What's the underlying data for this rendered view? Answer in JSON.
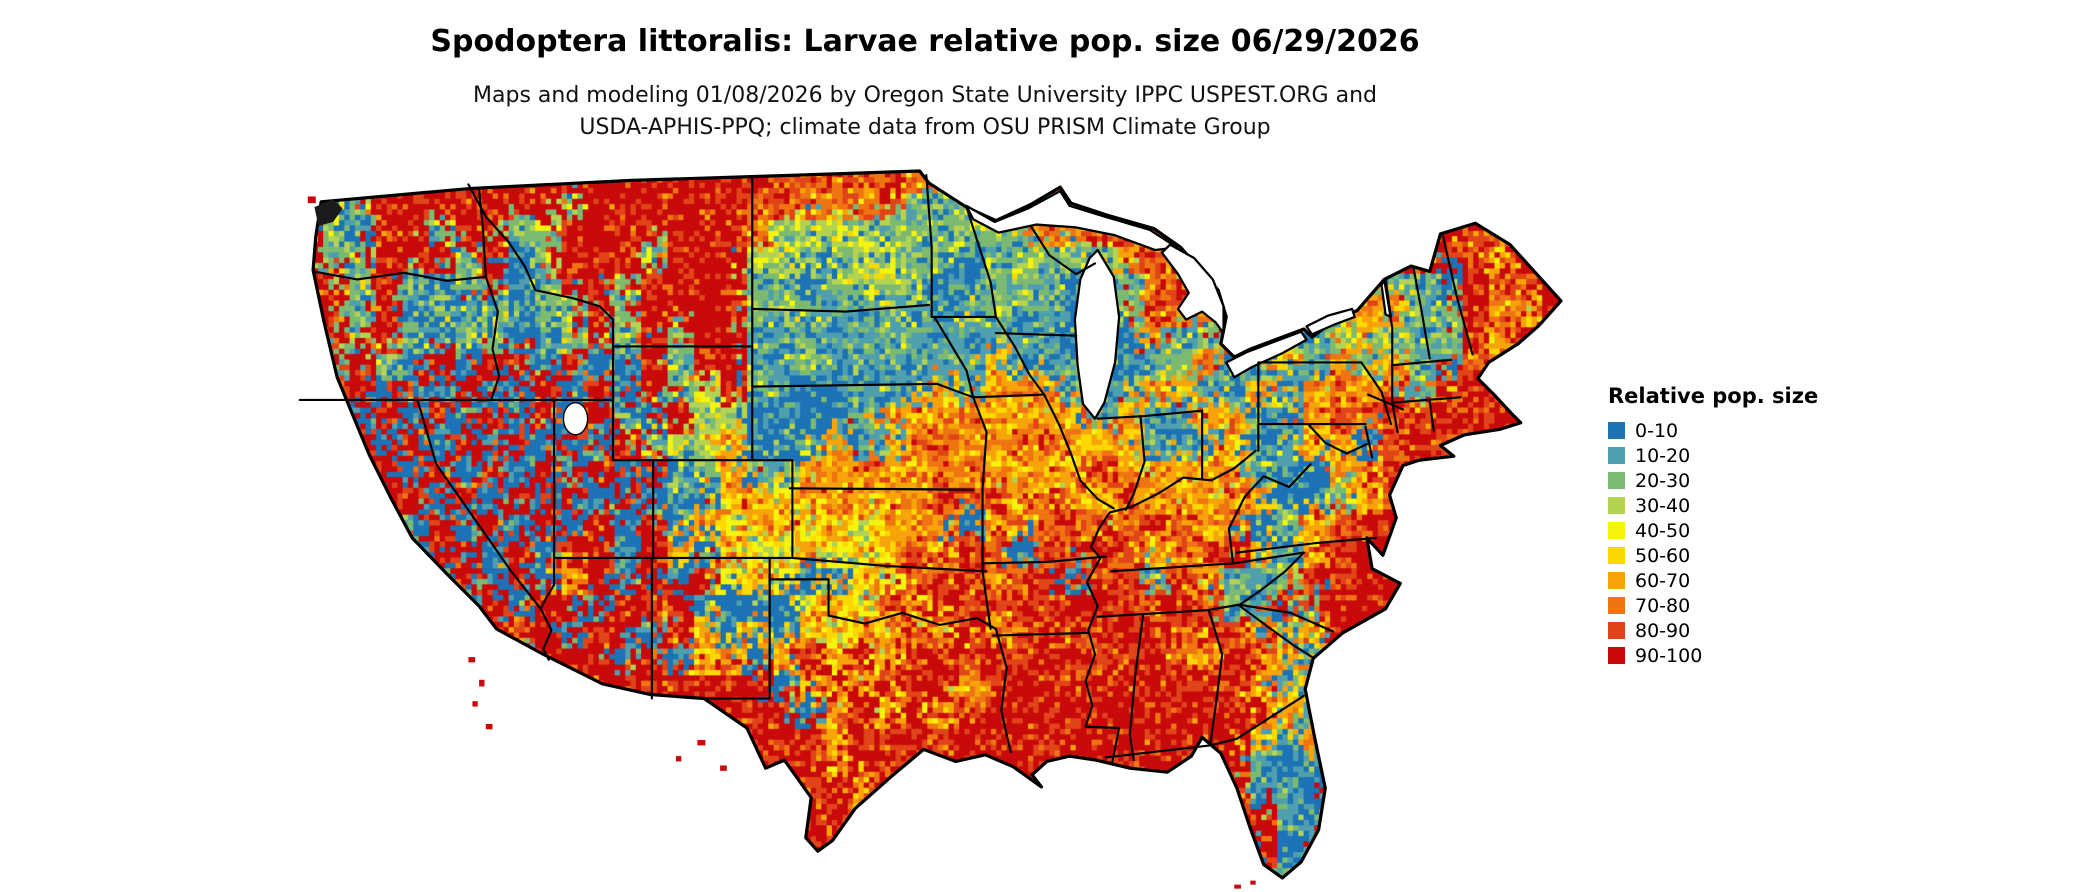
{
  "header": {
    "title": "Spodoptera littoralis: Larvae relative pop. size 06/29/2026",
    "subtitle_line1": "Maps and modeling 01/08/2026 by Oregon State University IPPC USPEST.ORG and",
    "subtitle_line2": "USDA-APHIS-PPQ; climate data from OSU PRISM Climate Group"
  },
  "legend": {
    "title": "Relative pop. size",
    "items": [
      {
        "label": "0-10",
        "color": "#1c73b5"
      },
      {
        "label": "10-20",
        "color": "#4f9fae"
      },
      {
        "label": "20-30",
        "color": "#7cba72"
      },
      {
        "label": "30-40",
        "color": "#b4d353"
      },
      {
        "label": "40-50",
        "color": "#f4f40e"
      },
      {
        "label": "50-60",
        "color": "#fdd800"
      },
      {
        "label": "60-70",
        "color": "#f7a40a"
      },
      {
        "label": "70-80",
        "color": "#ee7512"
      },
      {
        "label": "80-90",
        "color": "#e04418"
      },
      {
        "label": "90-100",
        "color": "#c90a0a"
      }
    ]
  },
  "chart_data": {
    "type": "heatmap",
    "title": "Spodoptera littoralis: Larvae relative pop. size 06/29/2026",
    "legend_title": "Relative pop. size",
    "legend_position": "right",
    "bins": [
      "0-10",
      "10-20",
      "20-30",
      "30-40",
      "40-50",
      "50-60",
      "60-70",
      "70-80",
      "80-90",
      "90-100"
    ],
    "colors": [
      "#1c73b5",
      "#4f9fae",
      "#7cba72",
      "#b4d353",
      "#f4f40e",
      "#fdd800",
      "#f7a40a",
      "#ee7512",
      "#e04418",
      "#c90a0a"
    ],
    "grid_cols": 48,
    "grid_rows": 27,
    "grid": [
      "992999999999999999888887767888888888888888888888",
      "902999999929999998877782222722888888888888888888",
      "920992992299999997333222222277887888888888898898",
      "922999290299929993322332202222278788888888898698",
      "992920290299299992202332002220227828212622209889",
      "992902020229299992221121122110028872221266229769",
      "992920220029292991111121111111007128221262129699",
      "929209099090092991121111116111101271161626218799",
      "989090900909092392100111616661116611616768189988",
      "990909090909209330000166676666161166106878898999",
      "999090909090923360016117767776661116016608989999",
      "999909090909090261166766776666866666110669899999",
      "999990909090902066467666878686676667600268999999",
      "999909090909090646646466706778688866026889999999",
      "989909909099096064464468688088986689616899999999",
      "999890909069090946401648896890881861128999999999",
      "999989090990989000046486988989988982181999999999",
      "999998988909909606064668696898899898716999999999",
      "999999990999090660696969989899889769861699999999",
      "999999999999999999069698968998999989616799999999",
      "999999999999999999906969689999999999961699999999",
      "999999999999999999996989899999999999616999999999",
      "999999999999999999996989999999999999101699999999",
      "999999999999999999989699999999999999110999999999",
      "999999999999999999998999999999999999910999999999",
      "999999999999999999998999999999999999901999999999",
      "999999999999999999999999999999999999919999999999"
    ]
  }
}
